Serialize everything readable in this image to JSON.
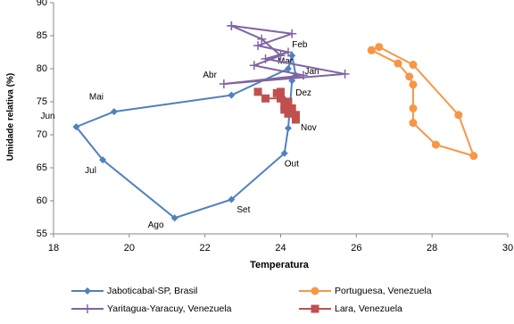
{
  "chart_data": {
    "type": "scatter-line",
    "xlabel": "Temperatura",
    "ylabel": "Umidade relativa (%)",
    "xlim": [
      18,
      30
    ],
    "xticks": [
      18,
      20,
      22,
      24,
      26,
      28,
      30
    ],
    "ylim": [
      55,
      90
    ],
    "yticks": [
      55,
      60,
      65,
      70,
      75,
      80,
      85,
      90
    ],
    "grid": false,
    "legend": "bottom",
    "series": [
      {
        "name": "Jaboticabal-SP, Brasil",
        "color": "#4f81bd",
        "marker": "diamond",
        "x": [
          24.4,
          24.3,
          24.2,
          22.7,
          19.6,
          18.6,
          19.3,
          21.2,
          22.7,
          24.1,
          24.2,
          24.3
        ],
        "values": [
          79,
          82,
          80,
          76,
          73.5,
          71.2,
          66.2,
          57.4,
          60.2,
          67.2,
          71,
          78.2
        ],
        "point_labels": [
          "Jan",
          "Feb",
          "Mar",
          "Abr",
          "Mai",
          "Jun",
          "Jul",
          "Ago",
          "Set",
          "Out",
          "Nov",
          "Dez"
        ]
      },
      {
        "name": "Portuguesa, Venezuela",
        "color": "#f79646",
        "marker": "circle",
        "x": [
          26.4,
          26.6,
          27.5,
          28.7,
          29.1,
          28.1,
          27.5,
          27.5,
          27.5,
          27.4,
          27.1,
          26.4
        ],
        "values": [
          82.8,
          83.3,
          80.6,
          73,
          66.8,
          68.5,
          71.8,
          74,
          77.6,
          78.8,
          80.8,
          82.8
        ]
      },
      {
        "name": "Yaritagua-Yaracuy, Venezuela",
        "color": "#8064a2",
        "marker": "plus",
        "x": [
          22.7,
          24.3,
          23.4,
          24.2,
          23.6,
          25.7,
          22.5,
          24.6,
          23.3,
          24.0,
          23.5,
          22.7
        ],
        "values": [
          86.5,
          85.3,
          83.5,
          82.5,
          81.5,
          79.2,
          77.7,
          79,
          80.5,
          82,
          84.5,
          86.5
        ]
      },
      {
        "name": "Lara, Venezuela",
        "color": "#c0504d",
        "marker": "square",
        "x": [
          23.4,
          23.6,
          24.0,
          24.0,
          24.2,
          24.1,
          24.2,
          24.4,
          24.4,
          24.3,
          24.1,
          23.9
        ],
        "values": [
          76.5,
          75.5,
          75.5,
          76.5,
          75,
          73.8,
          73.2,
          73,
          72.3,
          74,
          74.5,
          76.3
        ]
      }
    ]
  }
}
